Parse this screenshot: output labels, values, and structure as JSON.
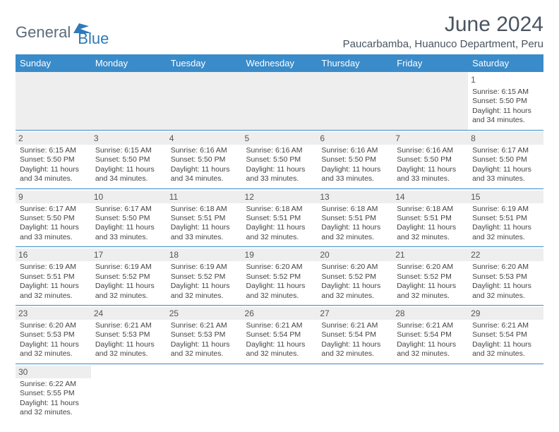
{
  "logo": {
    "part1": "General",
    "part2": "Blue"
  },
  "title": "June 2024",
  "location": "Paucarbamba, Huanuco Department, Peru",
  "colors": {
    "header_bg": "#3a8bc9",
    "header_text": "#ffffff",
    "daynum_bg": "#eeeeee",
    "border": "#3a8bc9",
    "logo1": "#5a6b7a",
    "logo2": "#2f7ab8",
    "text": "#444444"
  },
  "daynames": [
    "Sunday",
    "Monday",
    "Tuesday",
    "Wednesday",
    "Thursday",
    "Friday",
    "Saturday"
  ],
  "weeks": [
    [
      null,
      null,
      null,
      null,
      null,
      null,
      {
        "n": "1",
        "sr": "6:15 AM",
        "ss": "5:50 PM",
        "dl": "11 hours and 34 minutes."
      }
    ],
    [
      {
        "n": "2",
        "sr": "6:15 AM",
        "ss": "5:50 PM",
        "dl": "11 hours and 34 minutes."
      },
      {
        "n": "3",
        "sr": "6:15 AM",
        "ss": "5:50 PM",
        "dl": "11 hours and 34 minutes."
      },
      {
        "n": "4",
        "sr": "6:16 AM",
        "ss": "5:50 PM",
        "dl": "11 hours and 34 minutes."
      },
      {
        "n": "5",
        "sr": "6:16 AM",
        "ss": "5:50 PM",
        "dl": "11 hours and 33 minutes."
      },
      {
        "n": "6",
        "sr": "6:16 AM",
        "ss": "5:50 PM",
        "dl": "11 hours and 33 minutes."
      },
      {
        "n": "7",
        "sr": "6:16 AM",
        "ss": "5:50 PM",
        "dl": "11 hours and 33 minutes."
      },
      {
        "n": "8",
        "sr": "6:17 AM",
        "ss": "5:50 PM",
        "dl": "11 hours and 33 minutes."
      }
    ],
    [
      {
        "n": "9",
        "sr": "6:17 AM",
        "ss": "5:50 PM",
        "dl": "11 hours and 33 minutes."
      },
      {
        "n": "10",
        "sr": "6:17 AM",
        "ss": "5:50 PM",
        "dl": "11 hours and 33 minutes."
      },
      {
        "n": "11",
        "sr": "6:18 AM",
        "ss": "5:51 PM",
        "dl": "11 hours and 33 minutes."
      },
      {
        "n": "12",
        "sr": "6:18 AM",
        "ss": "5:51 PM",
        "dl": "11 hours and 32 minutes."
      },
      {
        "n": "13",
        "sr": "6:18 AM",
        "ss": "5:51 PM",
        "dl": "11 hours and 32 minutes."
      },
      {
        "n": "14",
        "sr": "6:18 AM",
        "ss": "5:51 PM",
        "dl": "11 hours and 32 minutes."
      },
      {
        "n": "15",
        "sr": "6:19 AM",
        "ss": "5:51 PM",
        "dl": "11 hours and 32 minutes."
      }
    ],
    [
      {
        "n": "16",
        "sr": "6:19 AM",
        "ss": "5:51 PM",
        "dl": "11 hours and 32 minutes."
      },
      {
        "n": "17",
        "sr": "6:19 AM",
        "ss": "5:52 PM",
        "dl": "11 hours and 32 minutes."
      },
      {
        "n": "18",
        "sr": "6:19 AM",
        "ss": "5:52 PM",
        "dl": "11 hours and 32 minutes."
      },
      {
        "n": "19",
        "sr": "6:20 AM",
        "ss": "5:52 PM",
        "dl": "11 hours and 32 minutes."
      },
      {
        "n": "20",
        "sr": "6:20 AM",
        "ss": "5:52 PM",
        "dl": "11 hours and 32 minutes."
      },
      {
        "n": "21",
        "sr": "6:20 AM",
        "ss": "5:52 PM",
        "dl": "11 hours and 32 minutes."
      },
      {
        "n": "22",
        "sr": "6:20 AM",
        "ss": "5:53 PM",
        "dl": "11 hours and 32 minutes."
      }
    ],
    [
      {
        "n": "23",
        "sr": "6:20 AM",
        "ss": "5:53 PM",
        "dl": "11 hours and 32 minutes."
      },
      {
        "n": "24",
        "sr": "6:21 AM",
        "ss": "5:53 PM",
        "dl": "11 hours and 32 minutes."
      },
      {
        "n": "25",
        "sr": "6:21 AM",
        "ss": "5:53 PM",
        "dl": "11 hours and 32 minutes."
      },
      {
        "n": "26",
        "sr": "6:21 AM",
        "ss": "5:54 PM",
        "dl": "11 hours and 32 minutes."
      },
      {
        "n": "27",
        "sr": "6:21 AM",
        "ss": "5:54 PM",
        "dl": "11 hours and 32 minutes."
      },
      {
        "n": "28",
        "sr": "6:21 AM",
        "ss": "5:54 PM",
        "dl": "11 hours and 32 minutes."
      },
      {
        "n": "29",
        "sr": "6:21 AM",
        "ss": "5:54 PM",
        "dl": "11 hours and 32 minutes."
      }
    ],
    [
      {
        "n": "30",
        "sr": "6:22 AM",
        "ss": "5:55 PM",
        "dl": "11 hours and 32 minutes."
      },
      null,
      null,
      null,
      null,
      null,
      null
    ]
  ],
  "labels": {
    "sunrise": "Sunrise:",
    "sunset": "Sunset:",
    "daylight": "Daylight:"
  }
}
